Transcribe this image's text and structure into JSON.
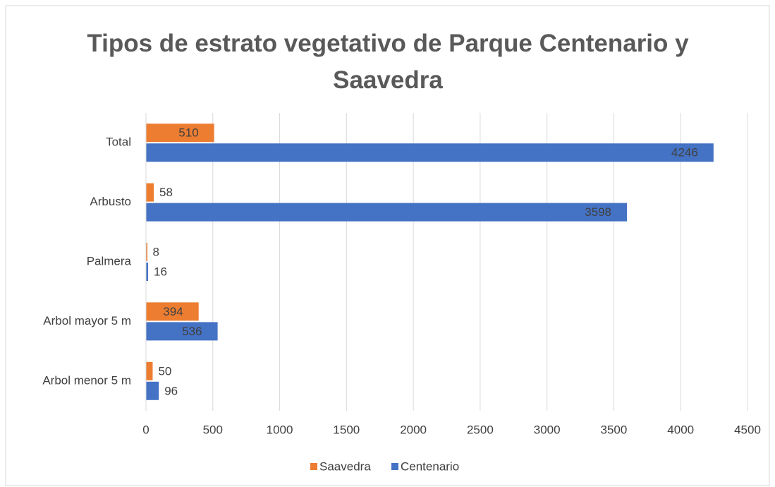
{
  "chart_data": {
    "type": "bar",
    "orientation": "horizontal",
    "title": "Tipos de estrato vegetativo de Parque Centenario y Saavedra",
    "categories": [
      "Arbol menor 5 m",
      "Arbol mayor 5 m",
      "Palmera",
      "Arbusto",
      "Total"
    ],
    "series": [
      {
        "name": "Saavedra",
        "color": "#ed7d31",
        "values": [
          50,
          394,
          8,
          58,
          510
        ]
      },
      {
        "name": "Centenario",
        "color": "#4472c4",
        "values": [
          96,
          536,
          16,
          3598,
          4246
        ]
      }
    ],
    "xlim": [
      0,
      4500
    ],
    "xticks": [
      0,
      500,
      1000,
      1500,
      2000,
      2500,
      3000,
      3500,
      4000,
      4500
    ],
    "grid": true,
    "legend": "bottom"
  }
}
